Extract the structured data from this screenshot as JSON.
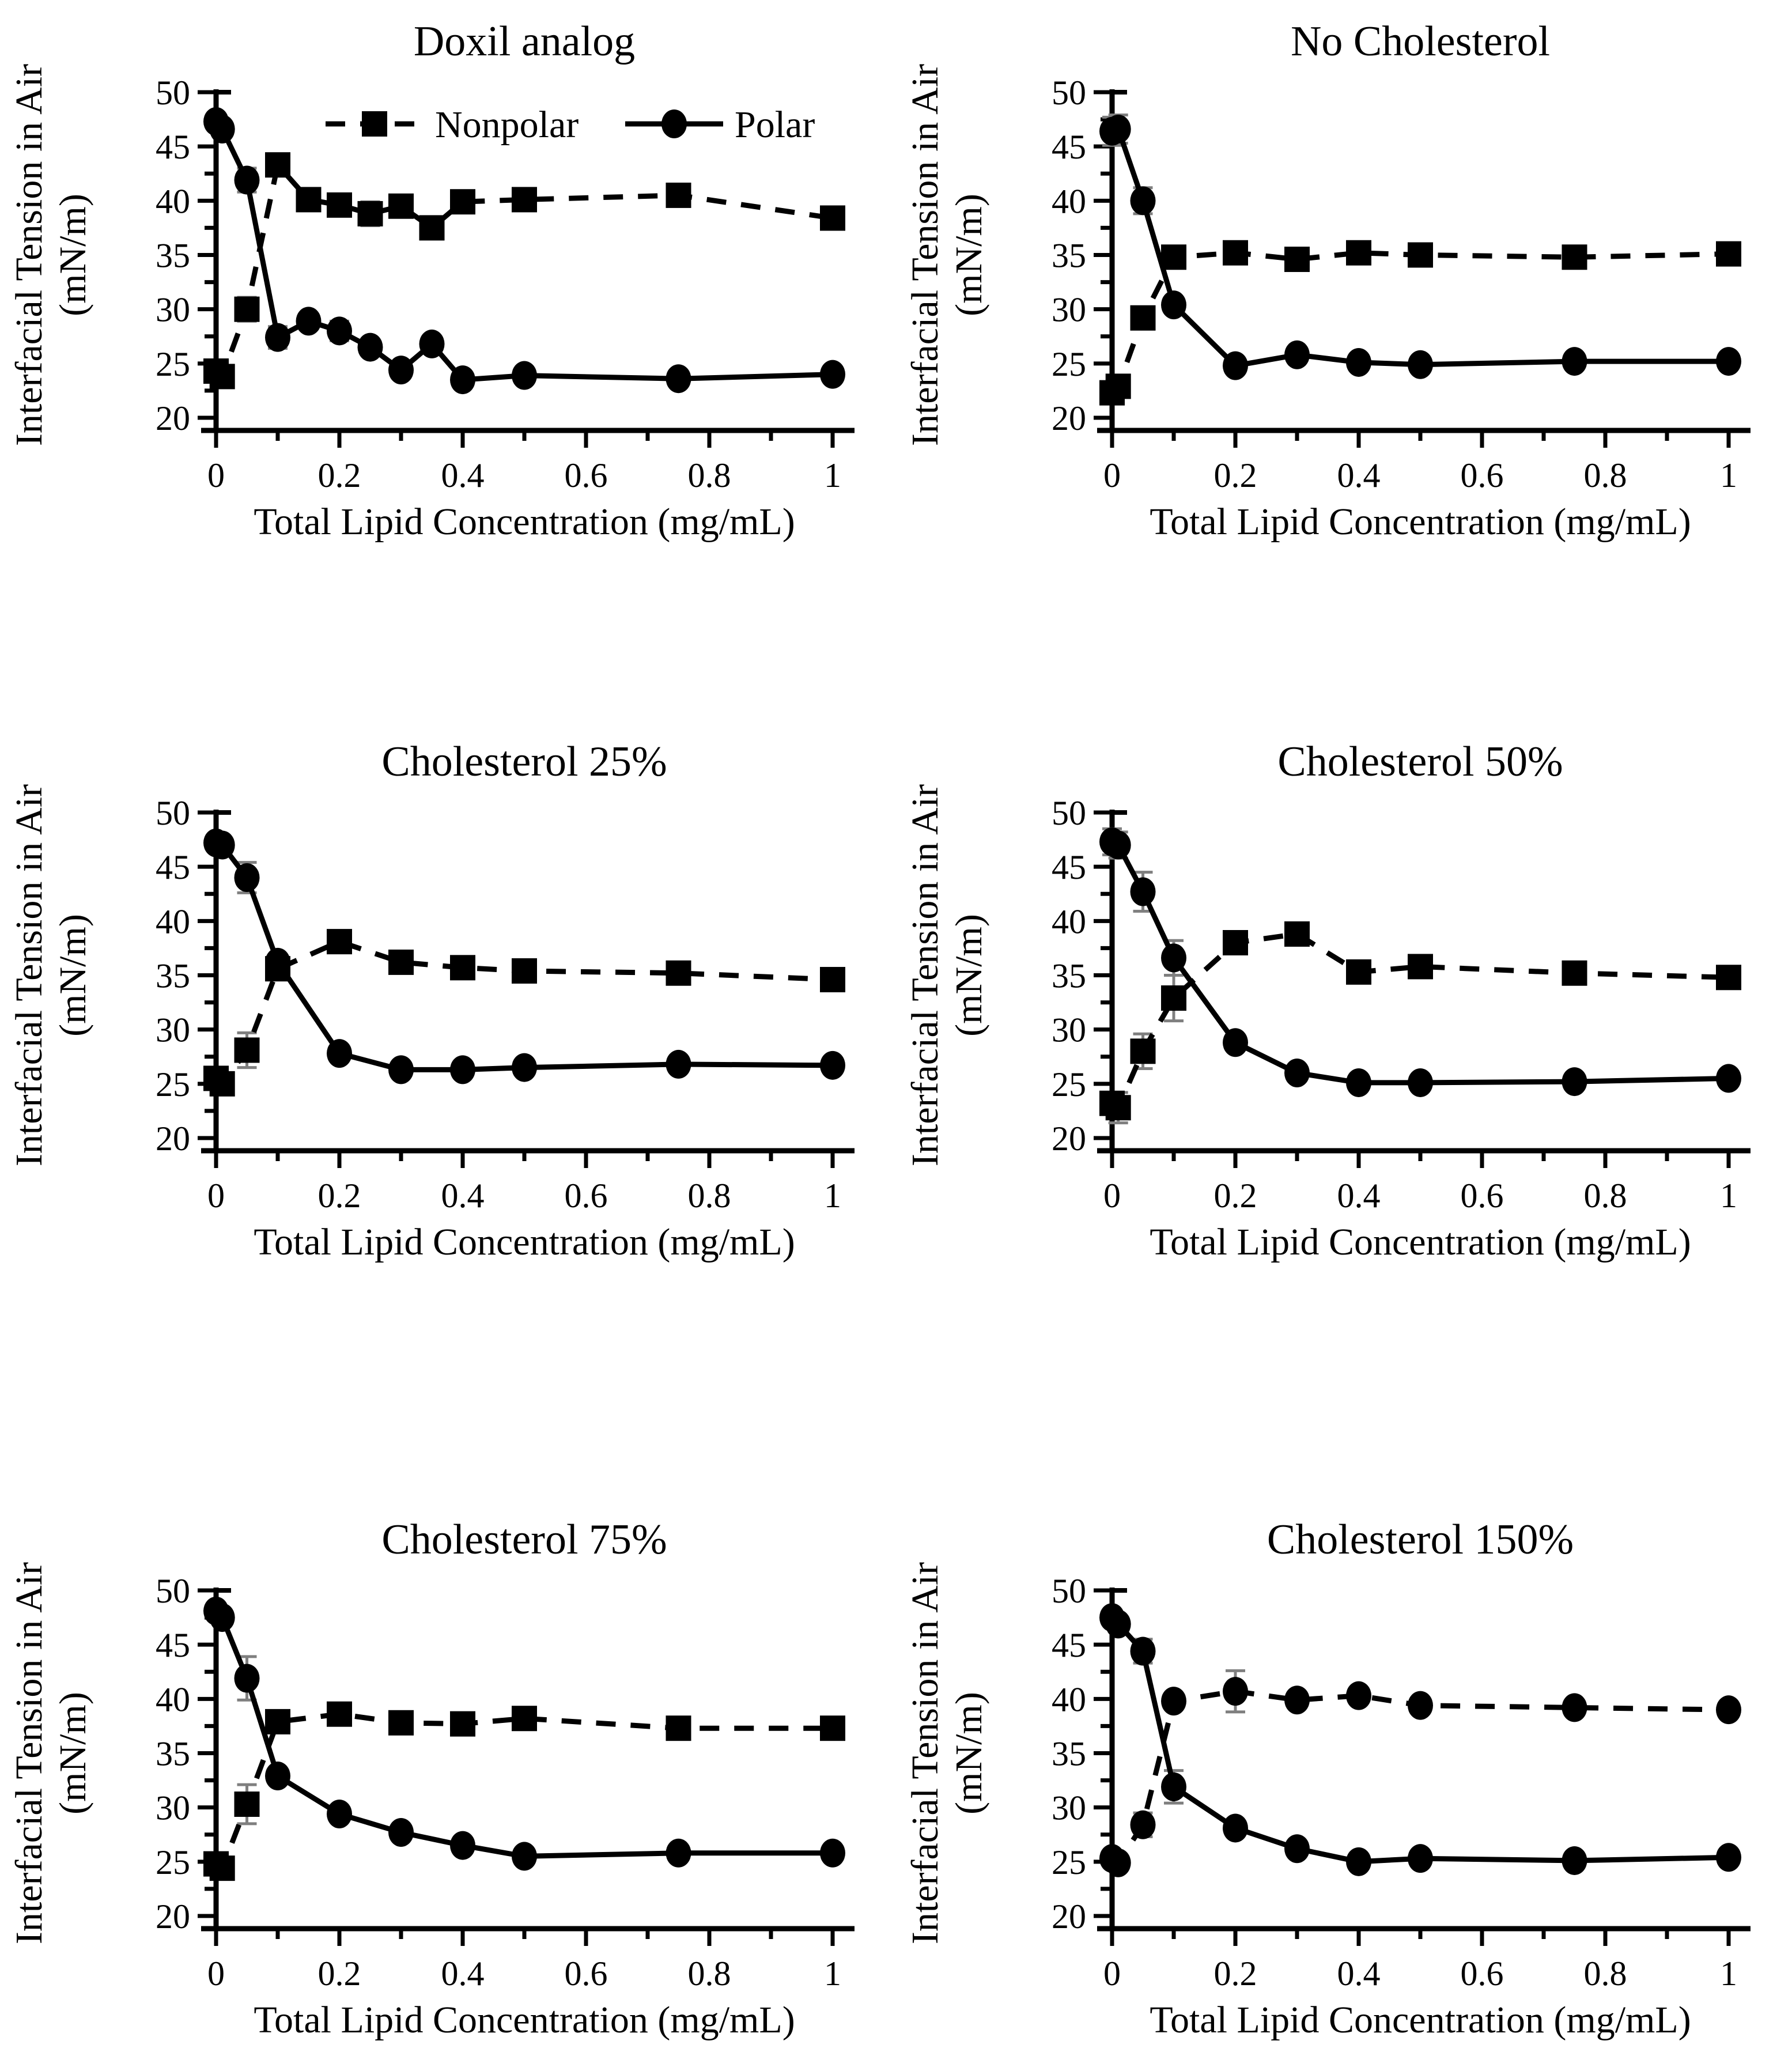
{
  "figure": {
    "background": "#ffffff",
    "text_color": "#000000",
    "series_color": "#000000",
    "error_bar_color": "#7f7f7f"
  },
  "axes": {
    "x_title": "Total Lipid Concentration (mg/mL)",
    "y_title_line1": "Interfacial Tension in Air",
    "y_title_line2": "(mN/m)",
    "x_tick_labels": [
      "0",
      "0.2",
      "0.4",
      "0.6",
      "0.8",
      "1"
    ],
    "x_tick_values": [
      0,
      0.2,
      0.4,
      0.6,
      0.8,
      1
    ],
    "y_tick_labels": [
      "20",
      "25",
      "30",
      "35",
      "40",
      "45",
      "50"
    ],
    "y_tick_values": [
      20,
      25,
      30,
      35,
      40,
      45,
      50
    ],
    "xlim": [
      0,
      1
    ],
    "ylim": [
      20,
      50
    ],
    "x_minor_step": 0.1,
    "y_minor_step": 2.5,
    "grid": "off"
  },
  "legend": {
    "position": "top-inside-first-panel",
    "nonpolar_label": "Nonpolar",
    "polar_label": "Polar"
  },
  "chart_data": [
    {
      "type": "line",
      "title": "Doxil analog",
      "show_legend": true,
      "series": [
        {
          "name": "Nonpolar",
          "line": "dashed",
          "marker": "square",
          "x": [
            0,
            0.01,
            0.05,
            0.1,
            0.15,
            0.2,
            0.25,
            0.3,
            0.35,
            0.4,
            0.5,
            0.75,
            1
          ],
          "y": [
            24.3,
            23.8,
            30.0,
            43.3,
            40.1,
            39.6,
            38.8,
            39.5,
            37.5,
            39.9,
            40.1,
            40.5,
            38.4
          ],
          "err": [
            0.5,
            0.5,
            1.1,
            0.4,
            0.5,
            0.4,
            1.1,
            0.9,
            0.4,
            0.3,
            0.7,
            0.8,
            0.4
          ]
        },
        {
          "name": "Polar",
          "line": "solid",
          "marker": "circle",
          "x": [
            0,
            0.01,
            0.05,
            0.1,
            0.15,
            0.2,
            0.25,
            0.3,
            0.35,
            0.4,
            0.5,
            0.75,
            1
          ],
          "y": [
            47.3,
            46.6,
            41.9,
            27.4,
            28.9,
            28.0,
            26.5,
            24.4,
            26.8,
            23.5,
            23.9,
            23.6,
            24.0
          ],
          "err": [
            0.5,
            0.5,
            1.1,
            1.0,
            0.4,
            0.9,
            0.5,
            0.4,
            0.4,
            0.3,
            0.3,
            0.3,
            0.3
          ]
        }
      ]
    },
    {
      "type": "line",
      "title": "No Cholesterol",
      "show_legend": false,
      "series": [
        {
          "name": "Nonpolar",
          "line": "dashed",
          "marker": "square",
          "x": [
            0,
            0.01,
            0.05,
            0.1,
            0.2,
            0.3,
            0.4,
            0.5,
            0.75,
            1
          ],
          "y": [
            22.3,
            22.9,
            29.2,
            34.8,
            35.2,
            34.6,
            35.2,
            35.0,
            34.8,
            35.1
          ],
          "err": [
            0.6,
            0.9,
            0.9,
            0.5,
            0.3,
            0.4,
            0.4,
            0.3,
            0.3,
            0.3
          ]
        },
        {
          "name": "Polar",
          "line": "solid",
          "marker": "circle",
          "x": [
            0,
            0.01,
            0.05,
            0.1,
            0.2,
            0.3,
            0.4,
            0.5,
            0.75,
            1
          ],
          "y": [
            46.4,
            46.6,
            40.0,
            30.4,
            24.8,
            25.8,
            25.1,
            24.9,
            25.2,
            25.2
          ],
          "err": [
            1.3,
            1.3,
            1.2,
            0.5,
            0.3,
            0.3,
            0.3,
            0.3,
            0.3,
            0.3
          ]
        }
      ]
    },
    {
      "type": "line",
      "title": "Cholesterol 25%",
      "show_legend": false,
      "series": [
        {
          "name": "Nonpolar",
          "line": "dashed",
          "marker": "square",
          "x": [
            0,
            0.01,
            0.05,
            0.1,
            0.2,
            0.3,
            0.4,
            0.5,
            0.75,
            1
          ],
          "y": [
            25.5,
            25.0,
            28.1,
            35.6,
            38.1,
            36.2,
            35.7,
            35.4,
            35.2,
            34.6
          ],
          "err": [
            0.4,
            0.4,
            1.6,
            0.5,
            0.4,
            0.3,
            0.4,
            0.4,
            0.3,
            0.3
          ]
        },
        {
          "name": "Polar",
          "line": "solid",
          "marker": "circle",
          "x": [
            0,
            0.01,
            0.05,
            0.1,
            0.2,
            0.3,
            0.4,
            0.5,
            0.75,
            1
          ],
          "y": [
            47.2,
            47.0,
            44.0,
            36.2,
            27.8,
            26.3,
            26.3,
            26.5,
            26.8,
            26.7
          ],
          "err": [
            0.4,
            0.4,
            1.4,
            0.5,
            0.3,
            0.3,
            0.3,
            0.3,
            0.3,
            0.3
          ]
        }
      ]
    },
    {
      "type": "line",
      "title": "Cholesterol 50%",
      "show_legend": false,
      "series": [
        {
          "name": "Nonpolar",
          "line": "dashed",
          "marker": "square",
          "x": [
            0,
            0.01,
            0.05,
            0.1,
            0.2,
            0.3,
            0.4,
            0.5,
            0.75,
            1
          ],
          "y": [
            23.2,
            22.8,
            28.0,
            32.9,
            38.0,
            38.8,
            35.3,
            35.8,
            35.2,
            34.8
          ],
          "err": [
            0.6,
            1.4,
            1.6,
            2.1,
            0.5,
            1.0,
            0.4,
            0.4,
            0.4,
            0.3
          ]
        },
        {
          "name": "Polar",
          "line": "solid",
          "marker": "circle",
          "x": [
            0,
            0.01,
            0.05,
            0.1,
            0.2,
            0.3,
            0.4,
            0.5,
            0.75,
            1
          ],
          "y": [
            47.3,
            47.0,
            42.7,
            36.6,
            28.8,
            26.0,
            25.1,
            25.1,
            25.2,
            25.5
          ],
          "err": [
            1.2,
            1.2,
            1.8,
            1.6,
            0.4,
            0.4,
            0.3,
            0.3,
            0.3,
            0.3
          ]
        }
      ]
    },
    {
      "type": "line",
      "title": "Cholesterol 75%",
      "show_legend": false,
      "series": [
        {
          "name": "Nonpolar",
          "line": "dashed",
          "marker": "square",
          "x": [
            0,
            0.01,
            0.05,
            0.1,
            0.2,
            0.3,
            0.4,
            0.5,
            0.75,
            1
          ],
          "y": [
            24.8,
            24.4,
            30.3,
            37.9,
            38.6,
            37.8,
            37.7,
            38.2,
            37.3,
            37.3
          ],
          "err": [
            0.4,
            0.4,
            1.8,
            0.6,
            0.5,
            0.6,
            0.6,
            0.4,
            0.4,
            0.4
          ]
        },
        {
          "name": "Polar",
          "line": "solid",
          "marker": "circle",
          "x": [
            0,
            0.01,
            0.05,
            0.1,
            0.2,
            0.3,
            0.4,
            0.5,
            0.75,
            1
          ],
          "y": [
            48.1,
            47.5,
            41.9,
            32.9,
            29.4,
            27.7,
            26.5,
            25.5,
            25.8,
            25.8
          ],
          "err": [
            0.5,
            0.5,
            2.0,
            0.5,
            0.4,
            0.4,
            0.4,
            0.5,
            0.3,
            0.3
          ]
        }
      ]
    },
    {
      "type": "line",
      "title": "Cholesterol 150%",
      "show_legend": false,
      "series": [
        {
          "name": "Nonpolar",
          "line": "dashed",
          "marker": "circle",
          "x": [
            0,
            0.01,
            0.05,
            0.1,
            0.2,
            0.3,
            0.4,
            0.5,
            0.75,
            1
          ],
          "y": [
            25.3,
            24.9,
            28.4,
            39.8,
            40.7,
            39.9,
            40.3,
            39.4,
            39.2,
            39.0
          ],
          "err": [
            0.4,
            0.4,
            1.1,
            0.6,
            1.9,
            0.6,
            0.5,
            0.5,
            0.4,
            0.4
          ]
        },
        {
          "name": "Polar",
          "line": "solid",
          "marker": "circle",
          "x": [
            0,
            0.01,
            0.05,
            0.1,
            0.2,
            0.3,
            0.4,
            0.5,
            0.75,
            1
          ],
          "y": [
            47.5,
            46.9,
            44.4,
            31.9,
            28.1,
            26.2,
            25.0,
            25.3,
            25.1,
            25.4
          ],
          "err": [
            0.6,
            0.6,
            1.1,
            1.5,
            0.6,
            0.4,
            0.4,
            0.4,
            0.3,
            0.3
          ]
        }
      ]
    }
  ]
}
